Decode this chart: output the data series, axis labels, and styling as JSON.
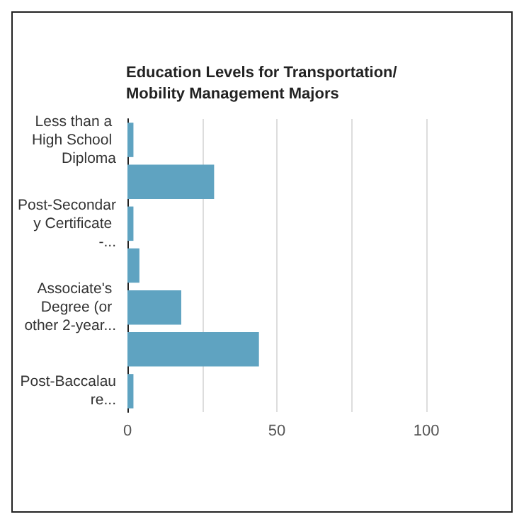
{
  "chart_data": {
    "type": "bar",
    "orientation": "horizontal",
    "title": "Education Levels for Transportation/\nMobility Management Majors",
    "categories": [
      "Less than a High School Diploma",
      null,
      "Post-Secondary Certificate -...",
      null,
      "Associate's Degree (or other 2-year...",
      null,
      "Post-Baccalaure..."
    ],
    "values": [
      2,
      29,
      2,
      4,
      18,
      44,
      2
    ],
    "color": "#5fa3c1",
    "xlim": [
      0,
      100
    ],
    "xticks": [
      0,
      {
        "value": 25,
        "label": null
      },
      50,
      {
        "value": 75,
        "label": null
      },
      100
    ],
    "grid": "x"
  }
}
